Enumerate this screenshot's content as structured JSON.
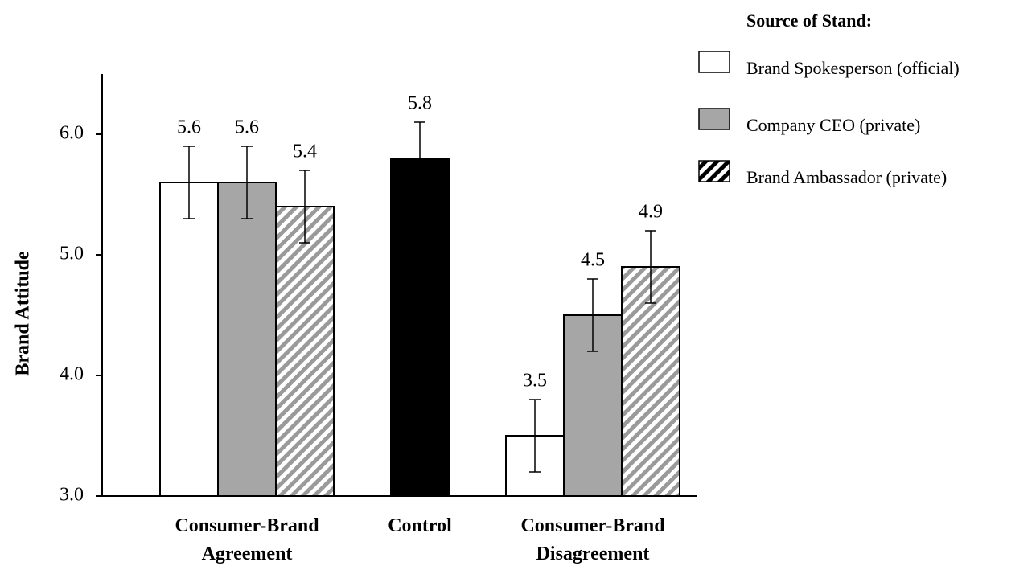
{
  "chart_data": {
    "type": "bar",
    "y_label": "Brand Attitude",
    "legend_title": "Source of Stand:",
    "categories": [
      "Consumer-Brand Agreement",
      "Control",
      "Consumer-Brand Disagreement"
    ],
    "series": [
      {
        "name": "Brand Spokesperson (official)",
        "color": "#ffffff",
        "values": [
          5.6,
          null,
          3.5
        ],
        "errors": [
          0.3,
          null,
          0.3
        ]
      },
      {
        "name": "Company CEO (private)",
        "color": "#a6a6a6",
        "values": [
          5.6,
          null,
          4.5
        ],
        "errors": [
          0.3,
          null,
          0.3
        ]
      },
      {
        "name": "Brand Ambassador (private)",
        "color": "#9a9a9a",
        "pattern": "hatch",
        "values": [
          5.4,
          null,
          4.9
        ],
        "errors": [
          0.3,
          null,
          0.3
        ]
      }
    ],
    "control": {
      "color": "#000000",
      "value": 5.8,
      "error": 0.3
    },
    "ylim": [
      3,
      6.5
    ],
    "yticks": [
      {
        "value": 3,
        "label": "3.0"
      },
      {
        "value": 4,
        "label": "4.0"
      },
      {
        "value": 5,
        "label": "5.0"
      },
      {
        "value": 6,
        "label": "6.0"
      }
    ]
  }
}
